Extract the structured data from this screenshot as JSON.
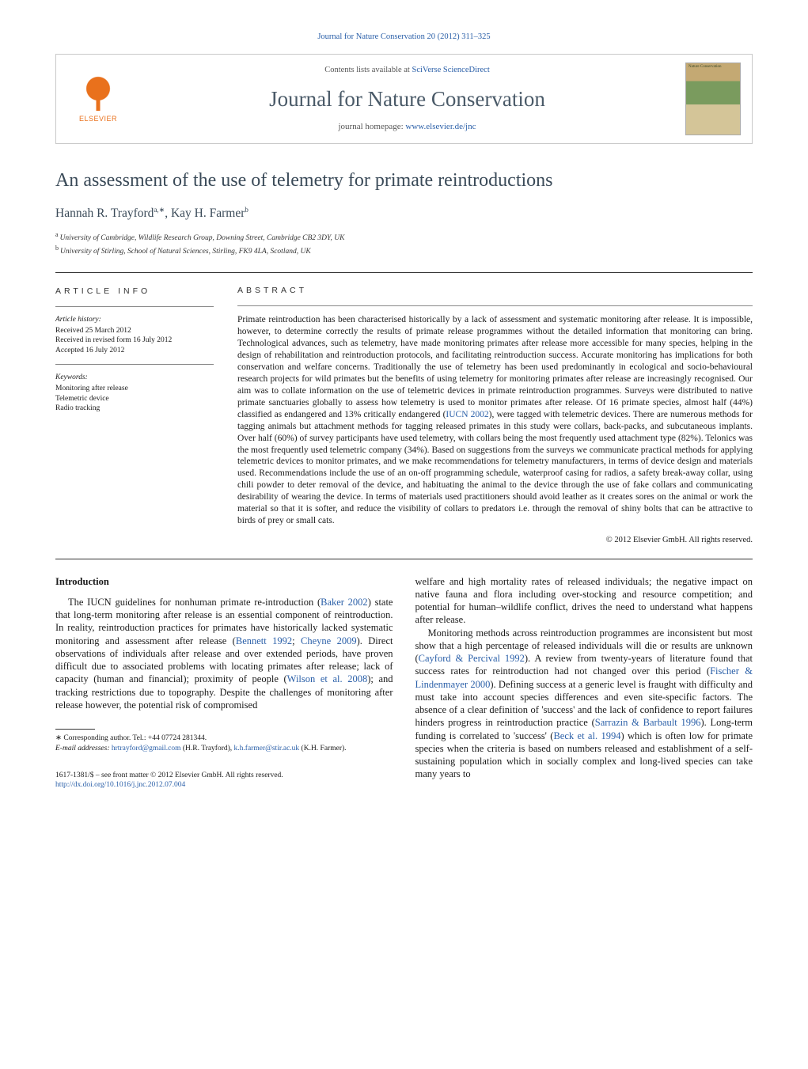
{
  "journal_ref": {
    "text": "Journal for Nature Conservation 20 (2012) 311–325",
    "url_label": "Journal for Nature Conservation 20 (2012) 311–325"
  },
  "header": {
    "publisher": "ELSEVIER",
    "contents_prefix": "Contents lists available at ",
    "contents_link": "SciVerse ScienceDirect",
    "journal_title": "Journal for Nature Conservation",
    "homepage_prefix": "journal homepage: ",
    "homepage_link": "www.elsevier.de/jnc"
  },
  "article": {
    "title": "An assessment of the use of telemetry for primate reintroductions",
    "author_line_1": "Hannah R. Trayford",
    "author_sup_1": "a,∗",
    "author_sep": ", ",
    "author_line_2": "Kay H. Farmer",
    "author_sup_2": "b",
    "aff_a_sup": "a",
    "aff_a": "University of Cambridge, Wildlife Research Group, Downing Street, Cambridge CB2 3DY, UK",
    "aff_b_sup": "b",
    "aff_b": "University of Stirling, School of Natural Sciences, Stirling, FK9 4LA, Scotland, UK"
  },
  "info": {
    "head": "article info",
    "history_label": "Article history:",
    "received": "Received 25 March 2012",
    "revised": "Received in revised form 16 July 2012",
    "accepted": "Accepted 16 July 2012",
    "kw_label": "Keywords:",
    "kw1": "Monitoring after release",
    "kw2": "Telemetric device",
    "kw3": "Radio tracking"
  },
  "abstract": {
    "head": "abstract",
    "text_1": "Primate reintroduction has been characterised historically by a lack of assessment and systematic monitoring after release. It is impossible, however, to determine correctly the results of primate release programmes without the detailed information that monitoring can bring. Technological advances, such as telemetry, have made monitoring primates after release more accessible for many species, helping in the design of rehabilitation and reintroduction protocols, and facilitating reintroduction success. Accurate monitoring has implications for both conservation and welfare concerns. Traditionally the use of telemetry has been used predominantly in ecological and socio-behavioural research projects for wild primates but the benefits of using telemetry for monitoring primates after release are increasingly recognised. Our aim was to collate information on the use of telemetric devices in primate reintroduction programmes. Surveys were distributed to native primate sanctuaries globally to assess how telemetry is used to monitor primates after release. Of 16 primate species, almost half (44%) classified as endangered and 13% critically endangered (",
    "iucn_link": "IUCN 2002",
    "text_2": "), were tagged with telemetric devices. There are numerous methods for tagging animals but attachment methods for tagging released primates in this study were collars, back-packs, and subcutaneous implants. Over half (60%) of survey participants have used telemetry, with collars being the most frequently used attachment type (82%). Telonics was the most frequently used telemetric company (34%). Based on suggestions from the surveys we communicate practical methods for applying telemetric devices to monitor primates, and we make recommendations for telemetry manufacturers, in terms of device design and materials used. Recommendations include the use of an on-off programming schedule, waterproof casing for radios, a safety break-away collar, using chili powder to deter removal of the device, and habituating the animal to the device through the use of fake collars and communicating desirability of wearing the device. In terms of materials used practitioners should avoid leather as it creates sores on the animal or work the material so that it is softer, and reduce the visibility of collars to predators i.e. through the removal of shiny bolts that can be attractive to birds of prey or small cats.",
    "copyright": "© 2012 Elsevier GmbH. All rights reserved."
  },
  "body": {
    "introduction_head": "Introduction",
    "left_p1_a": "The IUCN guidelines for nonhuman primate re-introduction (",
    "left_p1_link1": "Baker 2002",
    "left_p1_b": ") state that long-term monitoring after release is an essential component of reintroduction. In reality, reintroduction practices for primates have historically lacked systematic monitoring and assessment after release (",
    "left_p1_link2": "Bennett 1992",
    "left_p1_sep1": "; ",
    "left_p1_link3": "Cheyne 2009",
    "left_p1_c": "). Direct observations of individuals after release and over extended periods, have proven difficult due to associated problems with locating primates after release; lack of capacity (human and financial); proximity of people (",
    "left_p1_link4": "Wilson et al. 2008",
    "left_p1_d": "); and tracking restrictions due to topography. Despite the challenges of monitoring after release however, the potential risk of compromised",
    "right_p1": "welfare and high mortality rates of released individuals; the negative impact on native fauna and flora including over-stocking and resource competition; and potential for human–wildlife conflict, drives the need to understand what happens after release.",
    "right_p2_a": "Monitoring methods across reintroduction programmes are inconsistent but most show that a high percentage of released individuals will die or results are unknown (",
    "right_p2_link1": "Cayford & Percival 1992",
    "right_p2_b": "). A review from twenty-years of literature found that success rates for reintroduction had not changed over this period (",
    "right_p2_link2": "Fischer & Lindenmayer 2000",
    "right_p2_c": "). Defining success at a generic level is fraught with difficulty and must take into account species differences and even site-specific factors. The absence of a clear definition of 'success' and the lack of confidence to report failures hinders progress in reintroduction practice (",
    "right_p2_link3": "Sarrazin & Barbault 1996",
    "right_p2_d": "). Long-term funding is correlated to 'success' (",
    "right_p2_link4": "Beck et al. 1994",
    "right_p2_e": ") which is often low for primate species when the criteria is based on numbers released and establishment of a self-sustaining population which in socially complex and long-lived species can take many years to"
  },
  "footnotes": {
    "corr": "∗ Corresponding author. Tel.: +44 07724 281344.",
    "email_label": "E-mail addresses: ",
    "email1": "hrtrayford@gmail.com",
    "email1_name": " (H.R. Trayford), ",
    "email2": "k.h.farmer@stir.ac.uk",
    "email2_name": " (K.H. Farmer)."
  },
  "bottom": {
    "line1": "1617-1381/$ – see front matter © 2012 Elsevier GmbH. All rights reserved.",
    "doi": "http://dx.doi.org/10.1016/j.jnc.2012.07.004"
  },
  "colors": {
    "link": "#2a5fa8",
    "publisher": "#e9711c",
    "title_gray": "#3a4a58"
  }
}
